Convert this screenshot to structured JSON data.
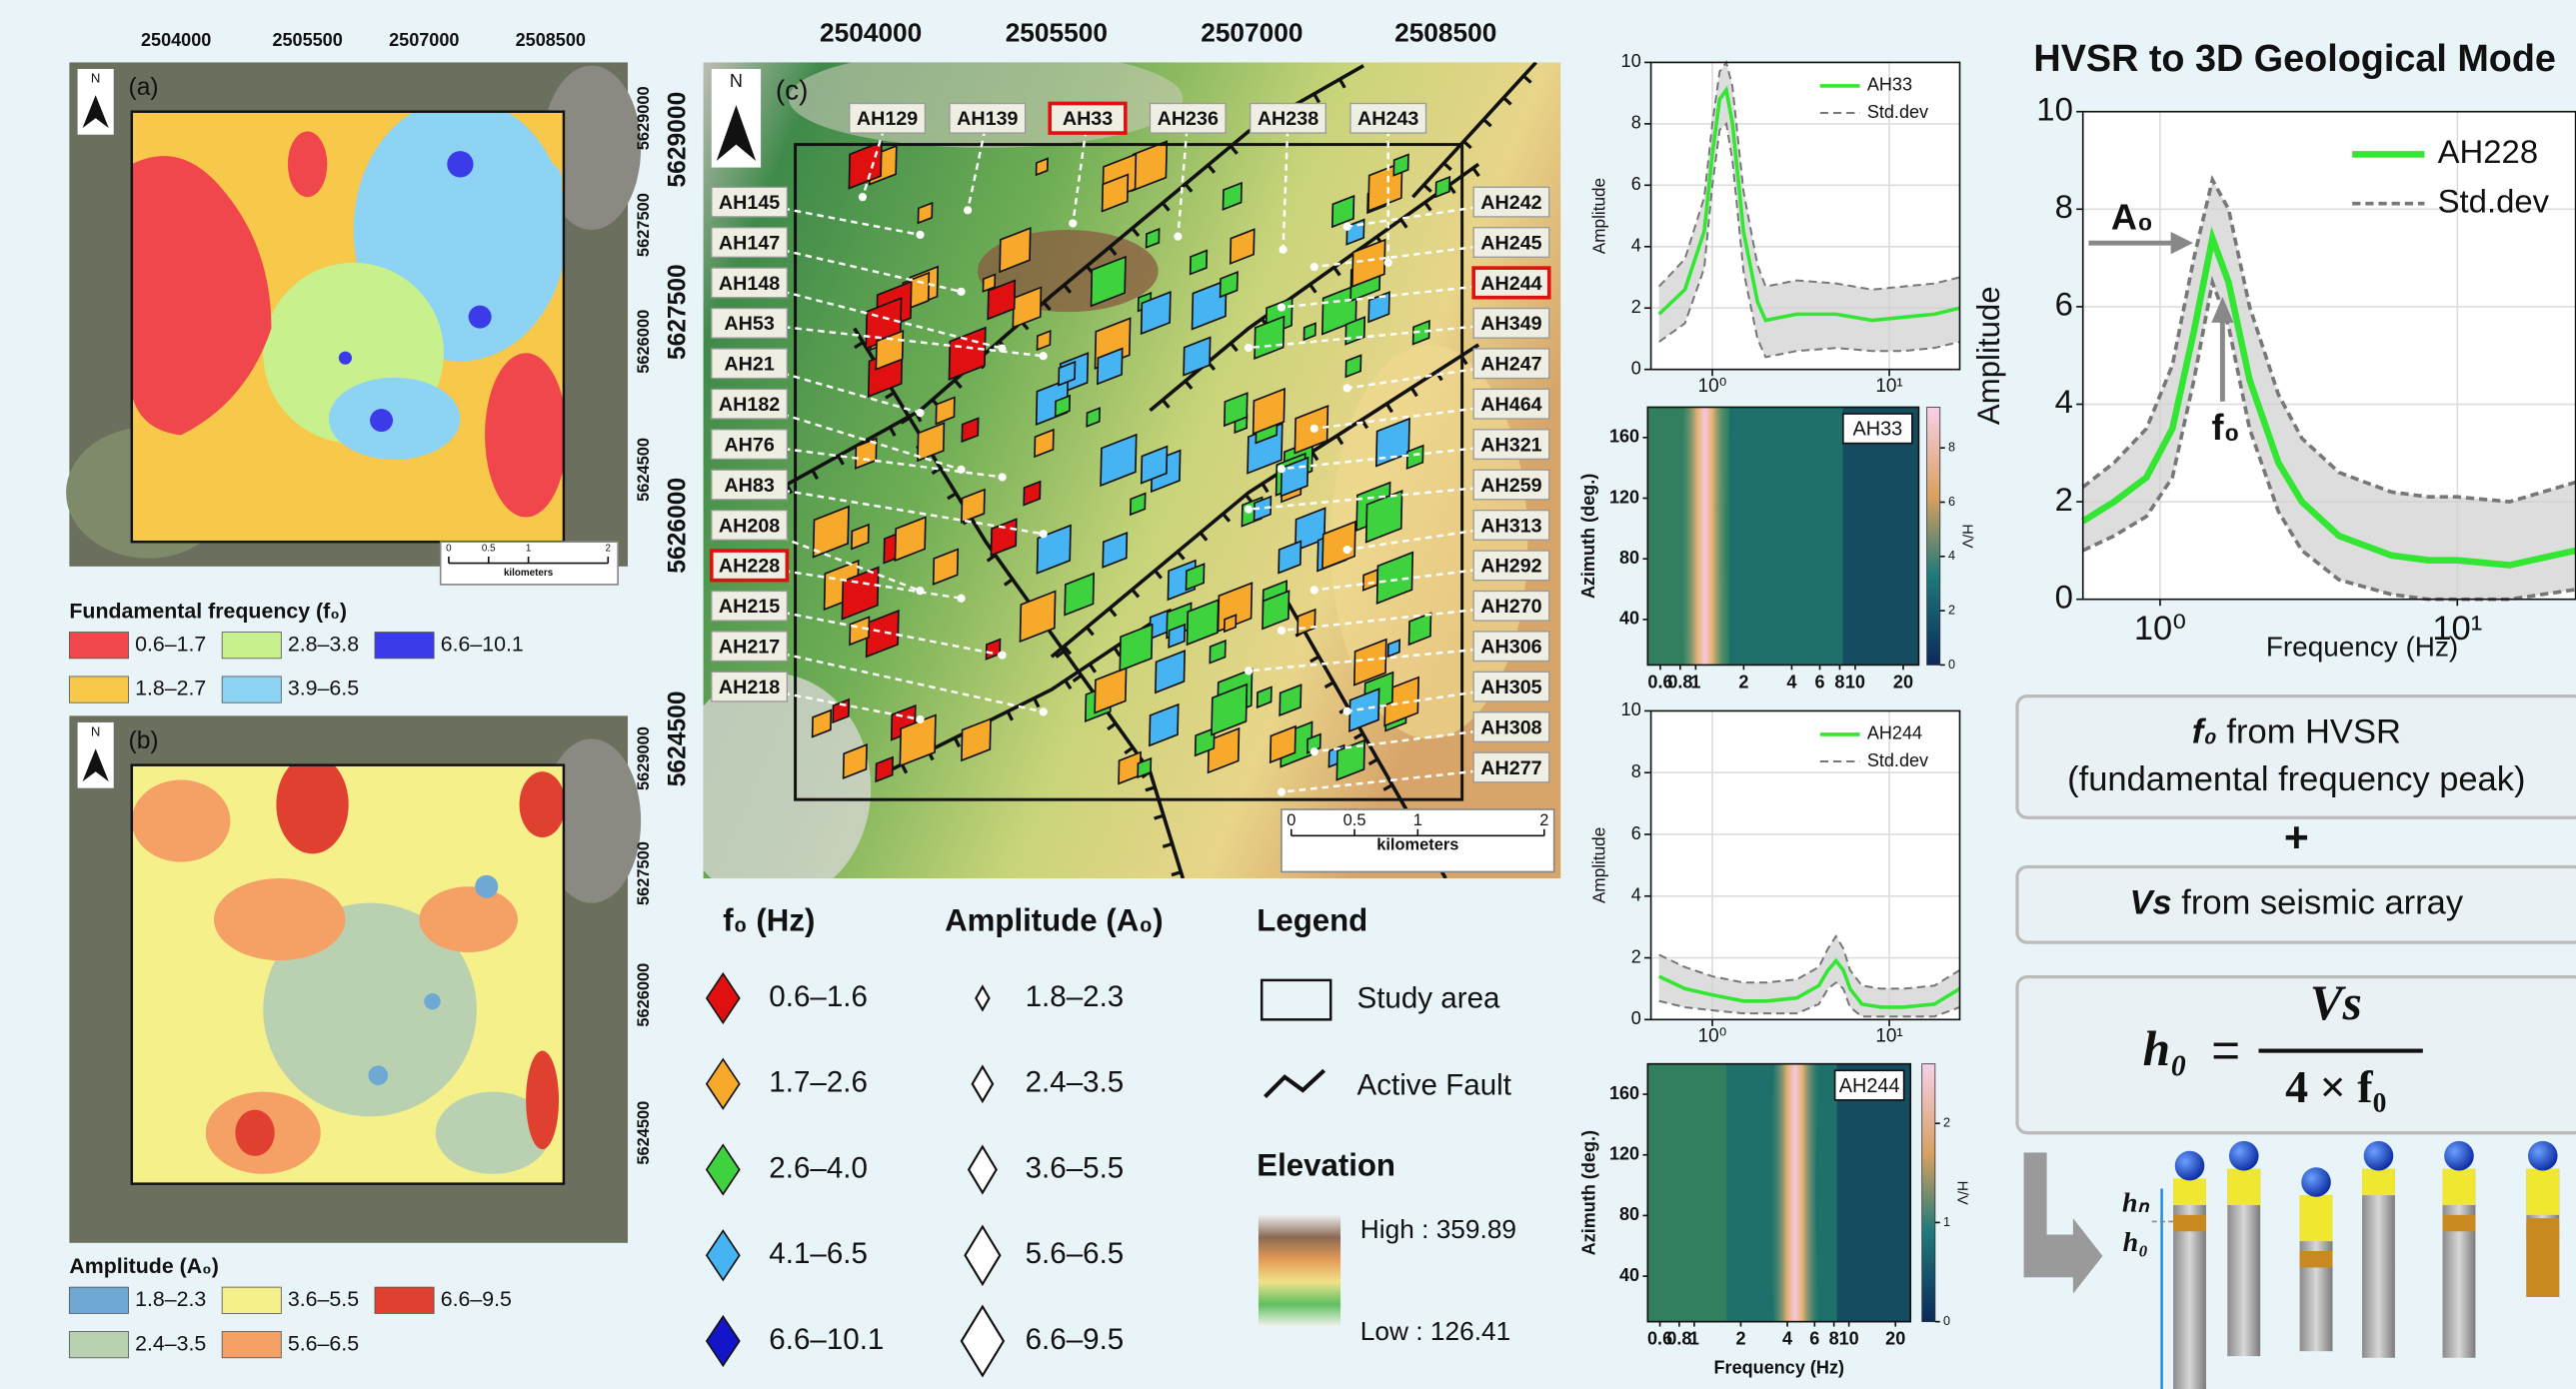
{
  "map_a": {
    "label": "(a)",
    "north": "N",
    "x_ticks": [
      "2504000",
      "2505500",
      "2507000",
      "2508500"
    ],
    "y_ticks": [
      "5629000",
      "5627500",
      "5626000",
      "5624500"
    ],
    "scale": {
      "ticks": [
        "0",
        "0.5",
        "1",
        "2"
      ],
      "unit": "kilometers"
    }
  },
  "legend_a": {
    "title": "Fundamental frequency (f₀)",
    "items": [
      {
        "label": "0.6–1.7",
        "color": "#f0474c"
      },
      {
        "label": "2.8–3.8",
        "color": "#c8f08c"
      },
      {
        "label": "6.6–10.1",
        "color": "#3b3bea"
      },
      {
        "label": "1.8–2.7",
        "color": "#f7c84a"
      },
      {
        "label": "3.9–6.5",
        "color": "#8dd3f3"
      }
    ]
  },
  "map_b": {
    "label": "(b)",
    "north": "N",
    "y_ticks": [
      "5629000",
      "5627500",
      "5626000",
      "5624500"
    ]
  },
  "legend_b": {
    "title": "Amplitude (A₀)",
    "items": [
      {
        "label": "1.8–2.3",
        "color": "#6fa9d3"
      },
      {
        "label": "3.6–5.5",
        "color": "#f5f08a"
      },
      {
        "label": "6.6–9.5",
        "color": "#e0402f"
      },
      {
        "label": "2.4–3.5",
        "color": "#b9d1b0"
      },
      {
        "label": "5.6–6.5",
        "color": "#f5a064"
      }
    ]
  },
  "map_c": {
    "label": "(c)",
    "north": "N",
    "x_ticks": [
      "2504000",
      "2505500",
      "2507000",
      "2508500"
    ],
    "y_ticks": [
      "5629000",
      "5627500",
      "5626000",
      "5624500"
    ],
    "scale": {
      "ticks": [
        "0",
        "0.5",
        "1",
        "2"
      ],
      "unit": "kilometers"
    },
    "sites_top": [
      "AH129",
      "AH139",
      "AH33",
      "AH236",
      "AH238",
      "AH243"
    ],
    "sites_left": [
      "AH145",
      "AH147",
      "AH148",
      "AH53",
      "AH21",
      "AH182",
      "AH76",
      "AH83",
      "AH208",
      "AH228",
      "AH215",
      "AH217",
      "AH218"
    ],
    "sites_right": [
      "AH242",
      "AH245",
      "AH244",
      "AH349",
      "AH247",
      "AH464",
      "AH321",
      "AH259",
      "AH313",
      "AH292",
      "AH270",
      "AH306",
      "AH305",
      "AH308",
      "AH277"
    ],
    "highlighted": [
      "AH33",
      "AH228",
      "AH244"
    ]
  },
  "legend_c": {
    "f0": {
      "title": "f₀ (Hz)",
      "items": [
        {
          "label": "0.6–1.6",
          "color": "#e01010"
        },
        {
          "label": "1.7–2.6",
          "color": "#f6a92a"
        },
        {
          "label": "2.6–4.0",
          "color": "#3fd23f"
        },
        {
          "label": "4.1–6.5",
          "color": "#46b4f2"
        },
        {
          "label": "6.6–10.1",
          "color": "#1414c8"
        }
      ]
    },
    "amplitude": {
      "title": "Amplitude (A₀)",
      "items": [
        "1.8–2.3",
        "2.4–3.5",
        "3.6–5.5",
        "5.6–6.5",
        "6.6–9.5"
      ]
    },
    "legend": {
      "title": "Legend",
      "study_area": "Study area",
      "active_fault": "Active Fault",
      "elevation": "Elevation",
      "high": "High : 359.89",
      "low": "Low : 126.41"
    }
  },
  "chart_data": [
    {
      "type": "line",
      "xscale": "log",
      "grid": true,
      "ylabel": "Amplitude",
      "x": [
        0.5,
        0.7,
        0.9,
        1.0,
        1.1,
        1.2,
        1.3,
        1.5,
        1.8,
        2,
        3,
        5,
        8,
        12,
        18,
        25
      ],
      "xlim": [
        0.45,
        25
      ],
      "xticks": [
        {
          "value": 1,
          "label": "10⁰"
        },
        {
          "value": 10,
          "label": "10¹"
        }
      ],
      "ylim": [
        0,
        10
      ],
      "yticks": [
        0,
        2,
        4,
        6,
        8,
        10
      ],
      "series": [
        {
          "name": "AH33",
          "color": "#33e633",
          "values": [
            1.8,
            2.6,
            4.5,
            7,
            8.8,
            9.1,
            8,
            4.5,
            2.2,
            1.6,
            1.8,
            1.8,
            1.6,
            1.7,
            1.8,
            2.0
          ]
        },
        {
          "name": "Std.dev",
          "color": "#777777",
          "upper": [
            2.7,
            3.6,
            5.6,
            8,
            9.7,
            10,
            9.2,
            5.8,
            3.4,
            2.7,
            2.9,
            2.8,
            2.6,
            2.7,
            2.8,
            3.0
          ],
          "lower": [
            0.9,
            1.5,
            3.3,
            6,
            7.8,
            8,
            6.8,
            3.2,
            1.0,
            0.4,
            0.6,
            0.7,
            0.6,
            0.6,
            0.7,
            0.9
          ]
        }
      ]
    },
    {
      "type": "heatmap",
      "xscale": "log",
      "label": "AH33",
      "ylabel": "Azimuth (deg.)",
      "xlim": [
        0.5,
        25
      ],
      "xticks": [
        0.6,
        0.8,
        1,
        2,
        4,
        6,
        8,
        10,
        20
      ],
      "ylim": [
        10,
        180
      ],
      "yticks": [
        40,
        80,
        120,
        160
      ],
      "colorbar": {
        "label": "H/V",
        "lim": [
          0,
          9.5
        ],
        "ticks": [
          0,
          2,
          4,
          6,
          8
        ]
      }
    },
    {
      "type": "line",
      "xscale": "log",
      "grid": true,
      "ylabel": "Amplitude",
      "x": [
        0.5,
        0.7,
        1,
        1.5,
        2,
        3,
        4,
        4.5,
        5,
        5.5,
        6,
        7,
        9,
        12,
        18,
        25
      ],
      "xlim": [
        0.45,
        25
      ],
      "xticks": [
        {
          "value": 1,
          "label": "10⁰"
        },
        {
          "value": 10,
          "label": "10¹"
        }
      ],
      "ylim": [
        0,
        10
      ],
      "yticks": [
        0,
        2,
        4,
        6,
        8,
        10
      ],
      "series": [
        {
          "name": "AH244",
          "color": "#33e633",
          "values": [
            1.4,
            1.0,
            0.8,
            0.6,
            0.6,
            0.7,
            1.1,
            1.6,
            1.9,
            1.6,
            1.0,
            0.5,
            0.4,
            0.4,
            0.5,
            1.0
          ]
        },
        {
          "name": "Std.dev",
          "color": "#777777",
          "upper": [
            2.1,
            1.7,
            1.4,
            1.2,
            1.2,
            1.3,
            1.7,
            2.3,
            2.7,
            2.3,
            1.6,
            1.1,
            1.0,
            1.0,
            1.1,
            1.6
          ],
          "lower": [
            0.6,
            0.4,
            0.3,
            0.2,
            0.2,
            0.2,
            0.5,
            1.0,
            1.2,
            1.0,
            0.4,
            0.1,
            0.1,
            0.1,
            0.1,
            0.4
          ]
        }
      ]
    },
    {
      "type": "heatmap",
      "xscale": "log",
      "label": "AH244",
      "ylabel": "Azimuth (deg.)",
      "xlabel": "Frequency (Hz)",
      "xlim": [
        0.5,
        25
      ],
      "xticks": [
        0.6,
        0.8,
        1,
        2,
        4,
        6,
        8,
        10,
        20
      ],
      "ylim": [
        10,
        180
      ],
      "yticks": [
        40,
        80,
        120,
        160
      ],
      "colorbar": {
        "label": "H/V",
        "lim": [
          0,
          2.6
        ],
        "ticks": [
          0,
          1,
          2
        ]
      }
    },
    {
      "type": "line",
      "xscale": "log",
      "grid": true,
      "ylabel": "Amplitude",
      "xlabel": "Frequency (Hz)",
      "x": [
        0.55,
        0.7,
        0.9,
        1.1,
        1.3,
        1.5,
        1.7,
        2,
        2.5,
        3,
        4,
        6,
        8,
        10,
        15,
        25
      ],
      "xlim": [
        0.55,
        25
      ],
      "xticks": [
        {
          "value": 1,
          "label": "10⁰"
        },
        {
          "value": 10,
          "label": "10¹"
        }
      ],
      "ylim": [
        0,
        10
      ],
      "yticks": [
        0,
        2,
        4,
        6,
        8,
        10
      ],
      "annotations": [
        "A₀",
        "f₀"
      ],
      "series": [
        {
          "name": "AH228",
          "color": "#33e633",
          "values": [
            1.6,
            2.0,
            2.5,
            3.5,
            5.5,
            7.4,
            6.5,
            4.5,
            2.8,
            2.0,
            1.3,
            0.9,
            0.8,
            0.8,
            0.7,
            1.0
          ]
        },
        {
          "name": "Std.dev",
          "color": "#777777",
          "upper": [
            2.3,
            2.8,
            3.5,
            4.8,
            7,
            8.6,
            8,
            6,
            4.2,
            3.3,
            2.6,
            2.2,
            2.1,
            2.1,
            2.0,
            2.4
          ],
          "lower": [
            1.0,
            1.3,
            1.7,
            2.5,
            4.5,
            6.5,
            5.6,
            3.5,
            1.8,
            1.0,
            0.4,
            0.1,
            0,
            0,
            0,
            0.2
          ]
        }
      ]
    }
  ],
  "right_panel": {
    "title": "HVSR to 3D Geological Mode",
    "box1": {
      "symbol": "f₀",
      "text": " from HVSR",
      "text2": "(fundamental frequency peak)"
    },
    "plus": "+",
    "box2": {
      "symbol": "Vs",
      "text": " from seismic array"
    },
    "formula": {
      "lhs": "h₀",
      "eq": "=",
      "numerator": "Vs",
      "denominator": "4 × f₀"
    },
    "column_labels": [
      "hₙ",
      "h₀"
    ]
  }
}
